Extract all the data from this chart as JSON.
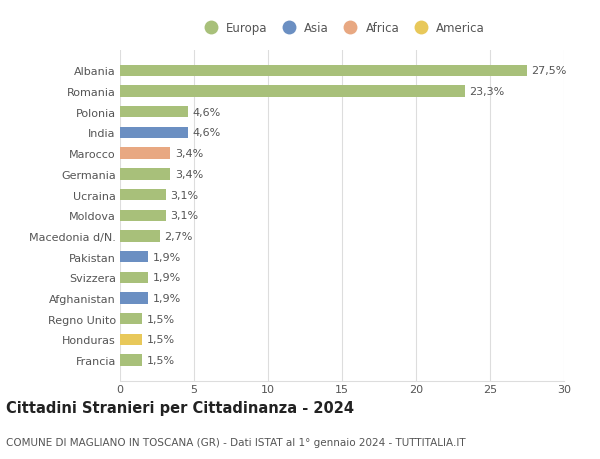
{
  "categories": [
    "Albania",
    "Romania",
    "Polonia",
    "India",
    "Marocco",
    "Germania",
    "Ucraina",
    "Moldova",
    "Macedonia d/N.",
    "Pakistan",
    "Svizzera",
    "Afghanistan",
    "Regno Unito",
    "Honduras",
    "Francia"
  ],
  "values": [
    27.5,
    23.3,
    4.6,
    4.6,
    3.4,
    3.4,
    3.1,
    3.1,
    2.7,
    1.9,
    1.9,
    1.9,
    1.5,
    1.5,
    1.5
  ],
  "labels": [
    "27,5%",
    "23,3%",
    "4,6%",
    "4,6%",
    "3,4%",
    "3,4%",
    "3,1%",
    "3,1%",
    "2,7%",
    "1,9%",
    "1,9%",
    "1,9%",
    "1,5%",
    "1,5%",
    "1,5%"
  ],
  "colors": [
    "#a8c07a",
    "#a8c07a",
    "#a8c07a",
    "#6b8fc2",
    "#e8a882",
    "#a8c07a",
    "#a8c07a",
    "#a8c07a",
    "#a8c07a",
    "#6b8fc2",
    "#a8c07a",
    "#6b8fc2",
    "#a8c07a",
    "#e8c85a",
    "#a8c07a"
  ],
  "legend": [
    {
      "label": "Europa",
      "color": "#a8c07a"
    },
    {
      "label": "Asia",
      "color": "#6b8fc2"
    },
    {
      "label": "Africa",
      "color": "#e8a882"
    },
    {
      "label": "America",
      "color": "#e8c85a"
    }
  ],
  "title": "Cittadini Stranieri per Cittadinanza - 2024",
  "subtitle": "COMUNE DI MAGLIANO IN TOSCANA (GR) - Dati ISTAT al 1° gennaio 2024 - TUTTITALIA.IT",
  "xlim": [
    0,
    30
  ],
  "xticks": [
    0,
    5,
    10,
    15,
    20,
    25,
    30
  ],
  "bg_color": "#ffffff",
  "grid_color": "#dddddd",
  "bar_height": 0.55,
  "title_fontsize": 10.5,
  "subtitle_fontsize": 7.5,
  "tick_fontsize": 8,
  "label_fontsize": 8
}
